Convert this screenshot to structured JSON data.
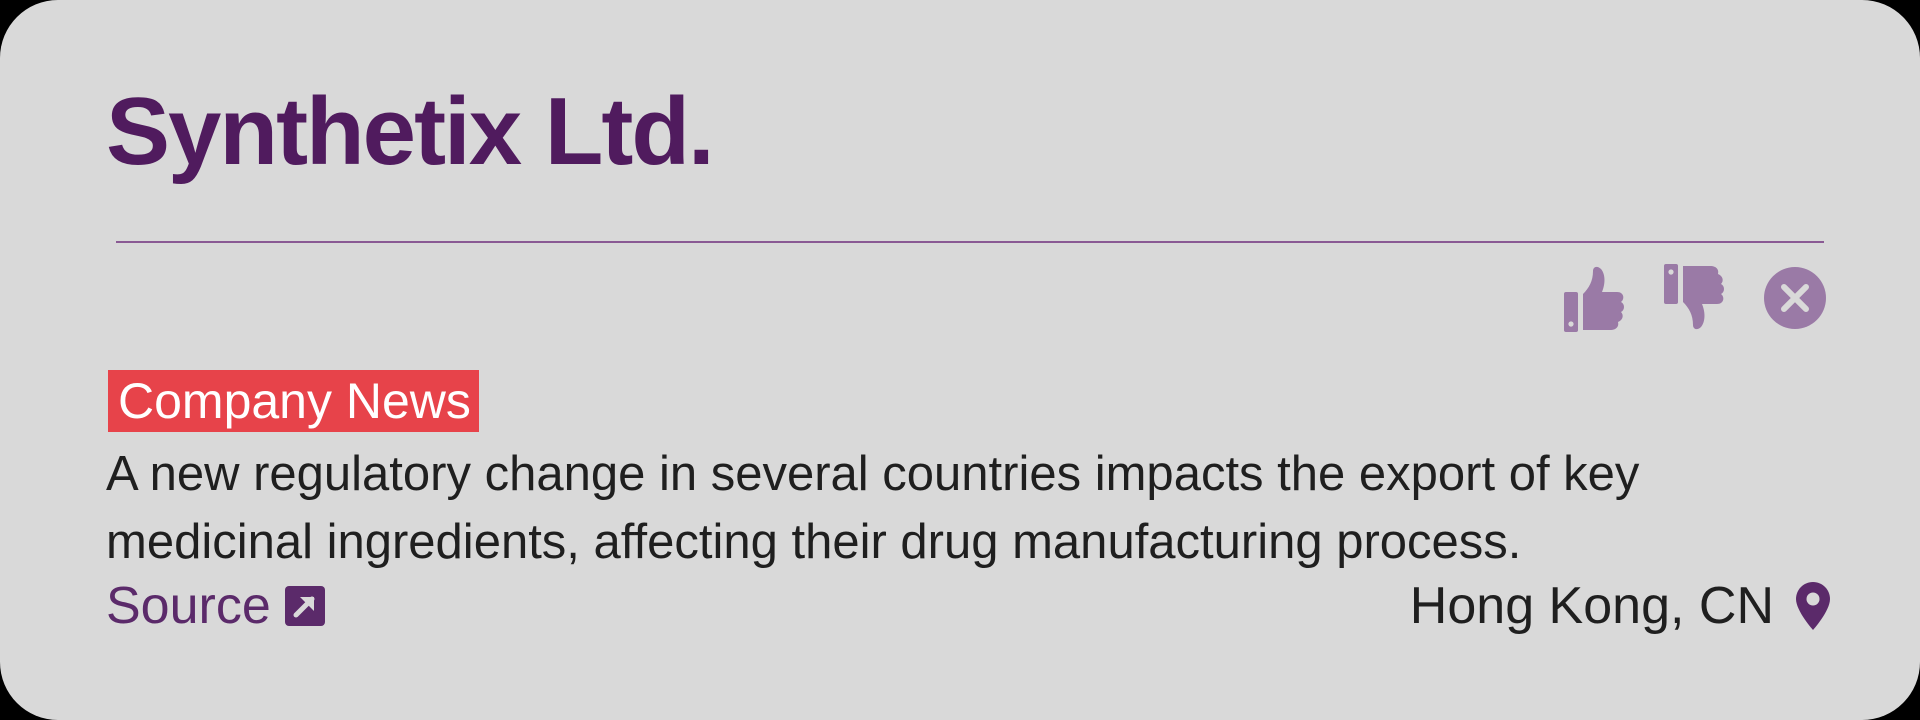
{
  "card": {
    "company_name": "Synthetix Ltd.",
    "category_label": "Company News",
    "description": "A new regulatory change in several countries impacts the export of key medicinal ingredients, affecting their drug manufacturing process.",
    "source_label": "Source",
    "location": "Hong Kong, CN"
  },
  "actions": {
    "like_icon": "thumbs-up-icon",
    "dislike_icon": "thumbs-down-icon",
    "dismiss_icon": "close-circle-icon"
  },
  "colors": {
    "card_background": "#d9d9d9",
    "title": "#501b5e",
    "tag_background": "#e7434a",
    "icon_muted": "#9a7aa6",
    "link": "#5b2a6a"
  }
}
